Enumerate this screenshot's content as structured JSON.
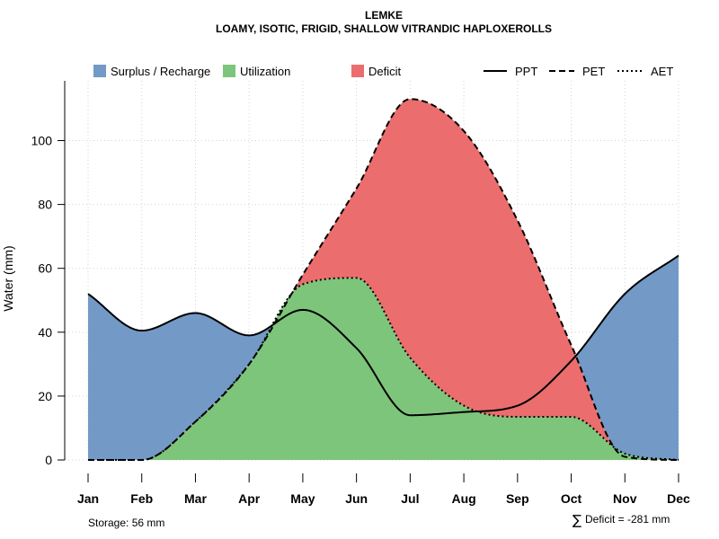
{
  "chart_data": {
    "type": "area",
    "title": "LEMKE",
    "subtitle": "LOAMY, ISOTIC, FRIGID, SHALLOW VITRANDIC HAPLOXEROLLS",
    "xlabel": "",
    "ylabel": "Water (mm)",
    "ylim": [
      0,
      118
    ],
    "yticks": [
      0,
      20,
      40,
      60,
      80,
      100
    ],
    "yticks_labels": [
      "0",
      "20",
      "40",
      "60",
      "80",
      "100"
    ],
    "grid": true,
    "categories": [
      "Jan",
      "Feb",
      "Mar",
      "Apr",
      "May",
      "Jun",
      "Jul",
      "Aug",
      "Sep",
      "Oct",
      "Nov",
      "Dec"
    ],
    "series": [
      {
        "name": "PPT",
        "style": "solid",
        "values": [
          52,
          40.5,
          46,
          39,
          47,
          35,
          14,
          15,
          17,
          31,
          52,
          64
        ]
      },
      {
        "name": "PET",
        "style": "dashed",
        "values": [
          0,
          0,
          12,
          30,
          58,
          85,
          113,
          103,
          75,
          36,
          1,
          0
        ]
      },
      {
        "name": "AET",
        "style": "dotted",
        "values": [
          0,
          0,
          12,
          30,
          55,
          57,
          32,
          17,
          13.5,
          13.5,
          2,
          0
        ]
      }
    ],
    "fills": [
      {
        "name": "Surplus / Recharge",
        "color": "#7399C6"
      },
      {
        "name": "Utilization",
        "color": "#7DC57A"
      },
      {
        "name": "Deficit",
        "color": "#EB6D6D"
      }
    ],
    "legend_position": "top",
    "legend": {
      "fills": [
        "Surplus / Recharge",
        "Utilization",
        "Deficit"
      ],
      "lines": [
        "PPT",
        "PET",
        "AET"
      ]
    }
  },
  "footer": {
    "storage": "Storage: 56 mm",
    "deficit_symbol": "∑",
    "deficit": "Deficit = -281 mm"
  }
}
